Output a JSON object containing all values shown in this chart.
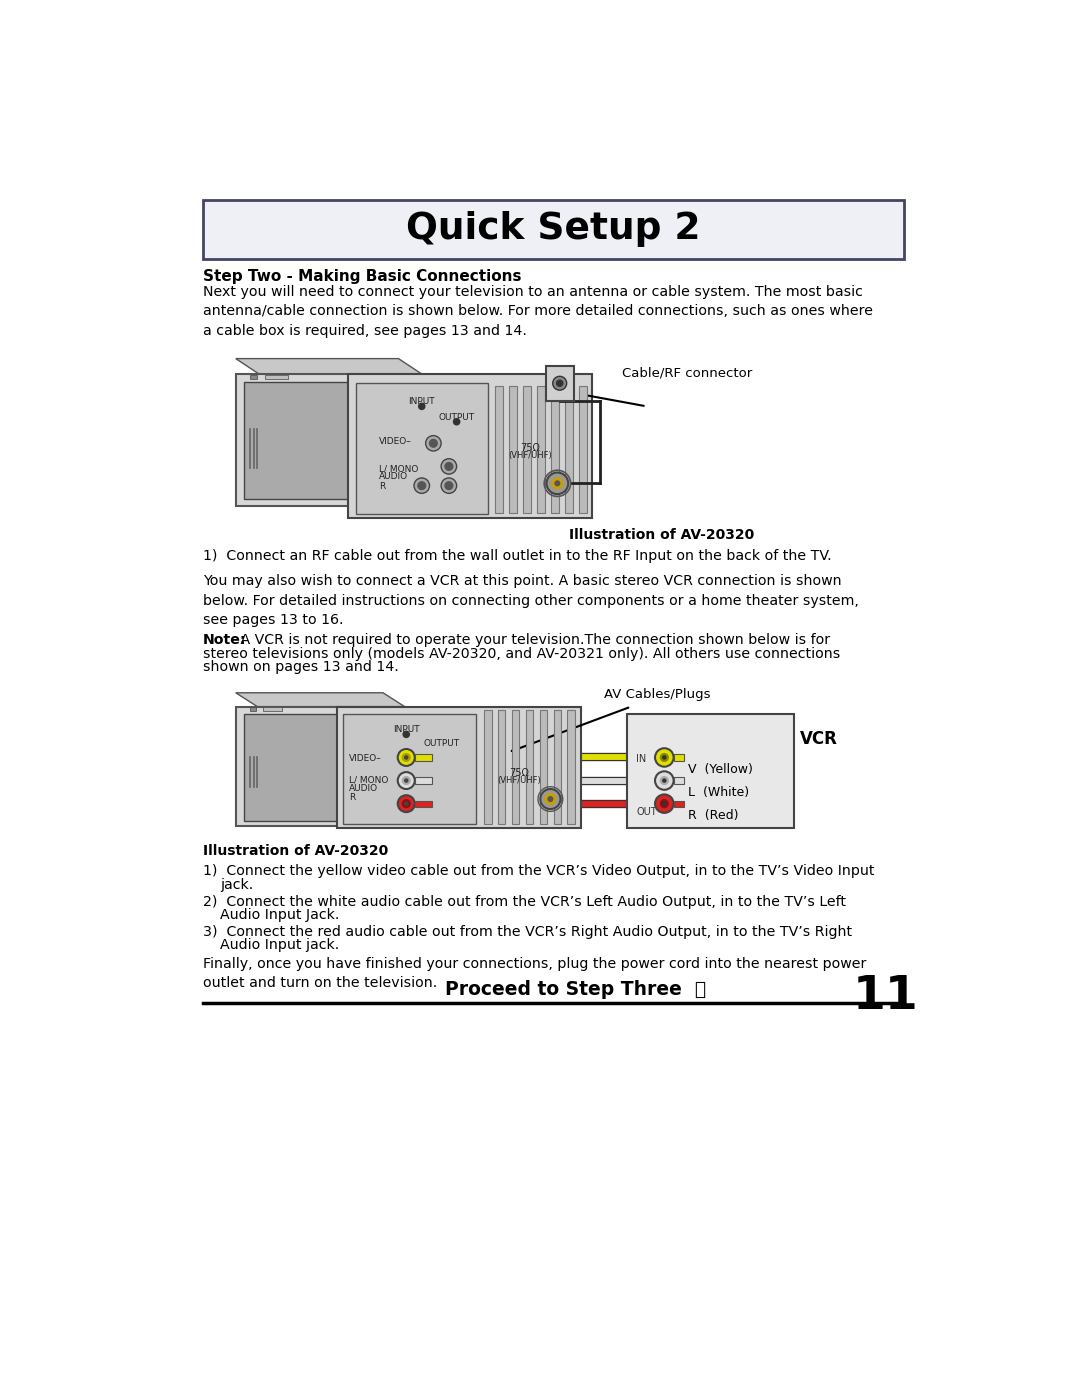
{
  "title": "Quick Setup 2",
  "bg_color": "#ffffff",
  "header_bg": "#eef0f5",
  "header_border": "#444466",
  "step_heading": "Step Two - Making Basic Connections",
  "para1": "Next you will need to connect your television to an antenna or cable system. The most basic\nantenna/cable connection is shown below. For more detailed connections, such as ones where\na cable box is required, see pages 13 and 14.",
  "caption1": "Cable/RF connector",
  "illus_caption1": "Illustration of AV-20320",
  "step1_text": "1)  Connect an RF cable out from the wall outlet in to the RF Input on the back of the TV.",
  "para2": "You may also wish to connect a VCR at this point. A basic stereo VCR connection is shown\nbelow. For detailed instructions on connecting other components or a home theater system,\nsee pages 13 to 16.",
  "note_bold": "Note:",
  "note_text": " A VCR is not required to operate your television.The connection shown below is for\nstereo televisions only (models AV-20320, and AV-20321 only). All others use connections\nshown on pages 13 and 14.",
  "caption2": "AV Cables/Plugs",
  "vcr_label": "VCR",
  "vcr_v": "V  (Yellow)",
  "vcr_l": "L  (White)",
  "vcr_r": "R  (Red)",
  "illus_caption2": "Illustration of AV-20320",
  "step2_1": "1)  Connect the yellow video cable out from the VCR’s Video Output, in to the TV’s Video Input\n     jack.",
  "step2_2": "2)  Connect the white audio cable out from the VCR’s Left Audio Output, in to the TV’s Left\n     Audio Input Jack.",
  "step2_3": "3)  Connect the red audio cable out from the VCR’s Right Audio Output, in to the TV’s Right\n     Audio Input jack.",
  "para3": "Finally, once you have finished your connections, plug the power cord into the nearest power\noutlet and turn on the television.",
  "footer_text": "Proceed to Step Three",
  "page_num": "11",
  "text_color": "#000000"
}
